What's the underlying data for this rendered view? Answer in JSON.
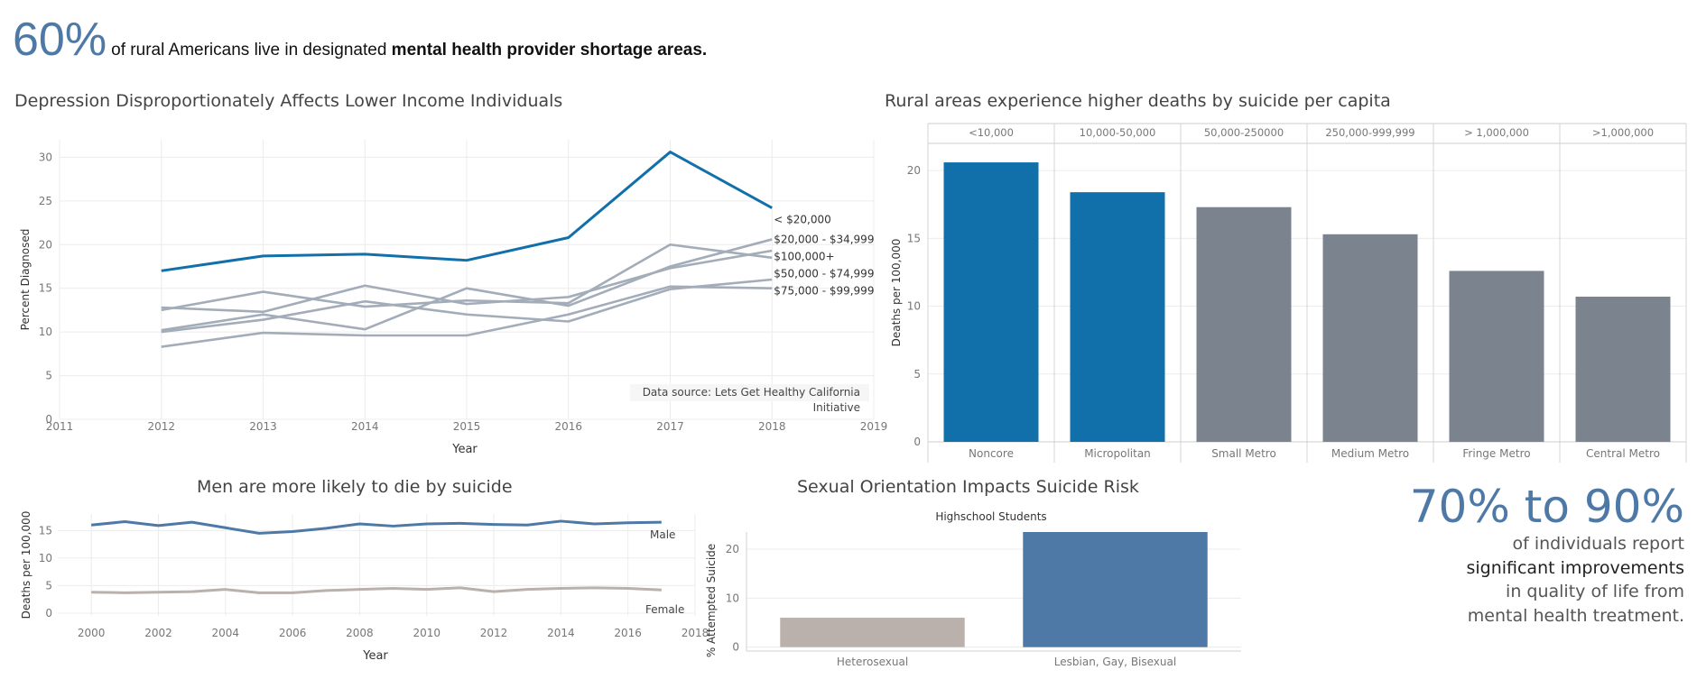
{
  "headline": {
    "big": "60%",
    "text_pre": "of rural Americans live in designated",
    "text_bold": "mental health provider shortage areas."
  },
  "stat": {
    "big": "70% to 90%",
    "lines": [
      "of individuals report",
      "significant improvements",
      "in quality of life from",
      "mental health treatment."
    ]
  },
  "colors": {
    "blue": "#1170aa",
    "gray": "#a3acb9",
    "bar_gray": "#7b838f",
    "steel": "#4e79a7",
    "taupe": "#bab0ac"
  },
  "chart_data": [
    {
      "type": "line",
      "title": "Depression Disproportionately Affects Lower Income Individuals",
      "xlabel": "Year",
      "ylabel": "Percent Diagnosed",
      "xlim": [
        2011,
        2019
      ],
      "ylim": [
        0,
        32
      ],
      "x_ticks": [
        2011,
        2012,
        2013,
        2014,
        2015,
        2016,
        2017,
        2018,
        2019
      ],
      "y_ticks": [
        0,
        5,
        10,
        15,
        20,
        25,
        30
      ],
      "x": [
        2012,
        2013,
        2014,
        2015,
        2016,
        2017,
        2018
      ],
      "series": [
        {
          "name": "< $20,000",
          "color": "#1170aa",
          "values": [
            17.0,
            18.7,
            18.9,
            18.2,
            20.8,
            30.6,
            24.2
          ]
        },
        {
          "name": "$20,000 - $34,999",
          "color": "#a3acb9",
          "values": [
            10.2,
            12.0,
            10.3,
            15.0,
            13.0,
            17.5,
            20.6
          ]
        },
        {
          "name": "$50,000 - $74,999",
          "color": "#a3acb9",
          "values": [
            12.5,
            14.6,
            12.9,
            13.6,
            13.3,
            20.0,
            18.5
          ]
        },
        {
          "name": "$100,000+",
          "color": "#a3acb9",
          "values": [
            12.8,
            12.3,
            15.3,
            13.2,
            14.0,
            17.3,
            19.3
          ]
        },
        {
          "name": "",
          "color": "#a3acb9",
          "values": [
            10.0,
            11.4,
            13.5,
            12.0,
            11.2,
            14.9,
            16.0
          ]
        },
        {
          "name": "$75,000 - $99,999",
          "color": "#a3acb9",
          "values": [
            8.3,
            9.9,
            9.6,
            9.6,
            12.0,
            15.2,
            15.0
          ]
        }
      ],
      "annotation": [
        "Data source: Lets Get Healthy California",
        "Initiative"
      ]
    },
    {
      "type": "bar",
      "title": "Rural areas experience higher deaths by suicide per capita",
      "ylabel": "Deaths per 100,000",
      "ylim": [
        0,
        22
      ],
      "y_ticks": [
        0,
        5,
        10,
        15,
        20
      ],
      "categories": [
        "Noncore",
        "Micropolitan",
        "Small Metro",
        "Medium Metro",
        "Fringe Metro",
        "Central Metro"
      ],
      "headers": [
        "<10,000",
        "10,000-50,000",
        "50,000-250000",
        "250,000-999,999",
        "> 1,000,000",
        ">1,000,000"
      ],
      "values": [
        20.6,
        18.4,
        17.3,
        15.3,
        12.6,
        10.7
      ],
      "colors": [
        "#1170aa",
        "#1170aa",
        "#7b838f",
        "#7b838f",
        "#7b838f",
        "#7b838f"
      ]
    },
    {
      "type": "line",
      "title": "Men are more likely to die by suicide",
      "xlabel": "Year",
      "ylabel": "Deaths per 100,000",
      "xlim": [
        1999,
        2018
      ],
      "ylim": [
        -0.5,
        18
      ],
      "x_ticks": [
        2000,
        2002,
        2004,
        2006,
        2008,
        2010,
        2012,
        2014,
        2016,
        2018
      ],
      "y_ticks": [
        0,
        5,
        10,
        15
      ],
      "x": [
        2000,
        2001,
        2002,
        2003,
        2004,
        2005,
        2006,
        2007,
        2008,
        2009,
        2010,
        2011,
        2012,
        2013,
        2014,
        2015,
        2016,
        2017
      ],
      "series": [
        {
          "name": "Male",
          "color": "#4e79a7",
          "values": [
            16.0,
            16.6,
            15.9,
            16.5,
            15.5,
            14.5,
            14.8,
            15.4,
            16.2,
            15.8,
            16.2,
            16.3,
            16.1,
            16.0,
            16.7,
            16.2,
            16.4,
            16.5
          ]
        },
        {
          "name": "Female",
          "color": "#bab0ac",
          "values": [
            3.8,
            3.7,
            3.8,
            3.9,
            4.3,
            3.7,
            3.7,
            4.1,
            4.3,
            4.5,
            4.3,
            4.6,
            3.9,
            4.3,
            4.5,
            4.6,
            4.5,
            4.2
          ]
        }
      ]
    },
    {
      "type": "bar",
      "title": "Sexual Orientation  Impacts Suicide Risk",
      "subtitle": "Highschool Students",
      "ylabel": "% Attempted Suicide",
      "ylim": [
        -0.8,
        23.5
      ],
      "y_ticks": [
        0,
        10,
        20
      ],
      "categories": [
        "Heterosexual",
        "Lesbian, Gay, Bisexual"
      ],
      "values": [
        6.0,
        23.5
      ],
      "colors": [
        "#bab0ac",
        "#4e79a7"
      ]
    }
  ]
}
